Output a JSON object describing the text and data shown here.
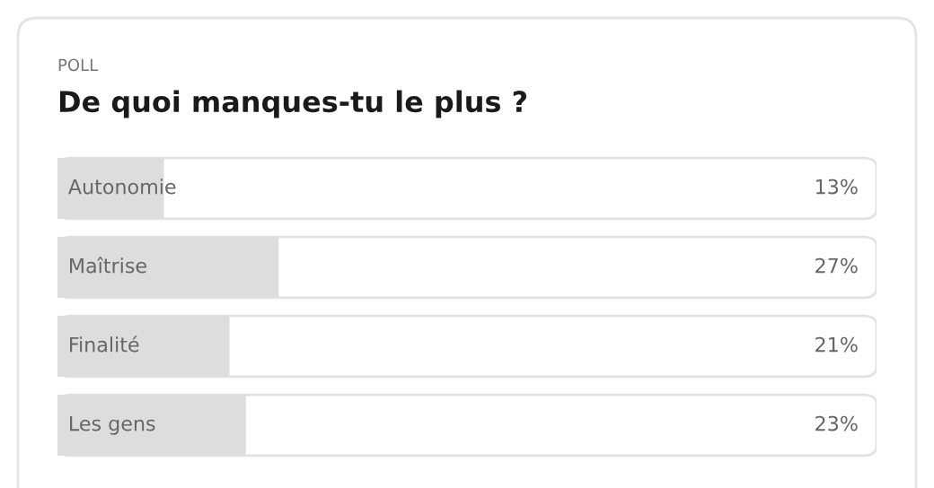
{
  "chart_data": {
    "type": "bar",
    "orientation": "horizontal",
    "subtitle": "POLL",
    "title": "De quoi manques-tu le plus ?",
    "categories": [
      "Autonomie",
      "Maîtrise",
      "Finalité",
      "Les gens"
    ],
    "values": [
      13,
      27,
      21,
      23
    ],
    "value_labels": [
      "13%",
      "27%",
      "21%",
      "23%"
    ],
    "color": "#dddddd",
    "xlim": [
      0,
      100
    ],
    "tick_labels": false,
    "grid": false,
    "legend": false
  }
}
